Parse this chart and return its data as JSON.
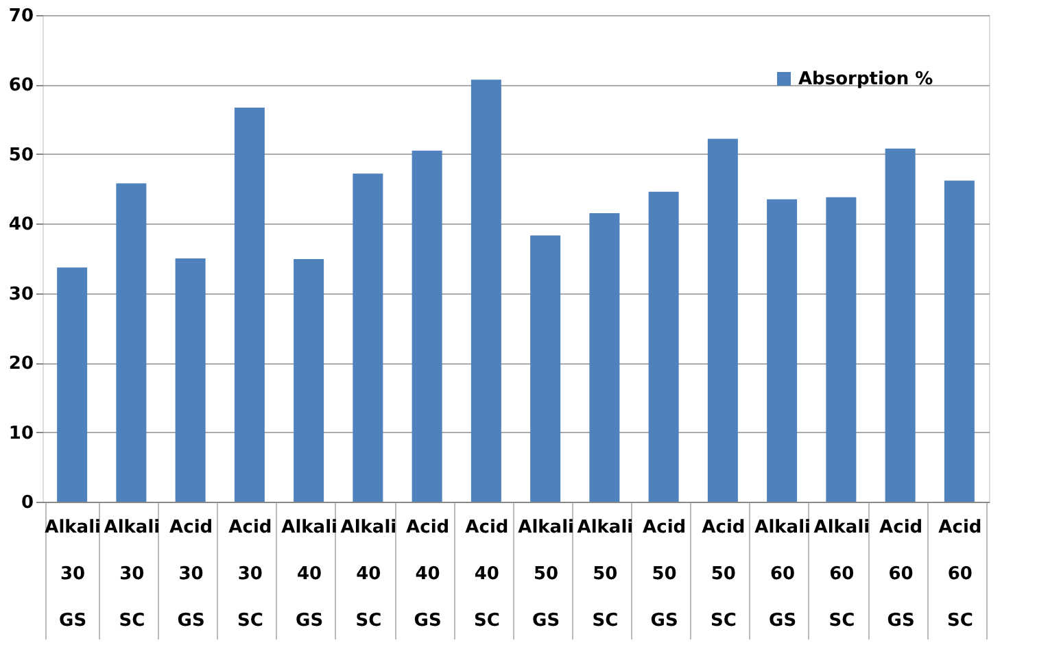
{
  "chart_data": {
    "type": "bar",
    "categories": [
      "Alkali 30 GS",
      "Alkali 30 SC",
      "Acid 30 GS",
      "Acid 30 SC",
      "Alkali 40 GS",
      "Alkali 40 SC",
      "Acid 40 GS",
      "Acid 40 SC",
      "Alkali 50 GS",
      "Alkali 50 SC",
      "Acid 50 GS",
      "Acid 50 SC",
      "Alkali 60 GS",
      "Alkali 60 SC",
      "Acid 60 GS",
      "Acid 60 SC"
    ],
    "series": [
      {
        "name": "Absorption %",
        "color": "#4f81bd",
        "values": [
          33.7,
          45.8,
          35.0,
          56.7,
          34.9,
          47.2,
          50.5,
          60.7,
          38.3,
          41.5,
          44.6,
          52.2,
          43.5,
          43.8,
          50.8,
          46.2
        ]
      }
    ],
    "ylim": [
      0,
      70
    ],
    "yticks": [
      0,
      10,
      20,
      30,
      40,
      50,
      60,
      70
    ],
    "grid": "y",
    "legend": "top right"
  }
}
